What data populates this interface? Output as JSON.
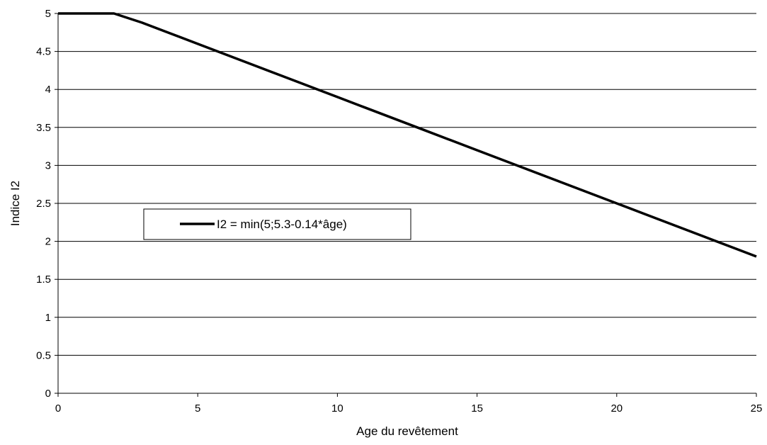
{
  "chart_data": {
    "type": "line",
    "title": "",
    "xlabel": "Age du revêtement",
    "ylabel": "Indice I2",
    "xlim": [
      0,
      25
    ],
    "ylim": [
      0,
      5
    ],
    "x_ticks": [
      0,
      5,
      10,
      15,
      20,
      25
    ],
    "y_ticks": [
      0,
      0.5,
      1,
      1.5,
      2,
      2.5,
      3,
      3.5,
      4,
      4.5,
      5
    ],
    "grid": "horizontal",
    "legend_position": "left-center",
    "series": [
      {
        "name": "I2 = min(5;5.3-0.14*âge)",
        "color": "#000000",
        "x": [
          0,
          1,
          2,
          3,
          4,
          5,
          6,
          7,
          8,
          9,
          10,
          11,
          12,
          13,
          14,
          15,
          16,
          17,
          18,
          19,
          20,
          21,
          22,
          23,
          24,
          25
        ],
        "y": [
          5,
          5,
          5,
          4.88,
          4.74,
          4.6,
          4.46,
          4.32,
          4.18,
          4.04,
          3.9,
          3.76,
          3.62,
          3.48,
          3.34,
          3.2,
          3.06,
          2.92,
          2.78,
          2.64,
          2.5,
          2.36,
          2.22,
          2.08,
          1.94,
          1.8
        ]
      }
    ]
  }
}
